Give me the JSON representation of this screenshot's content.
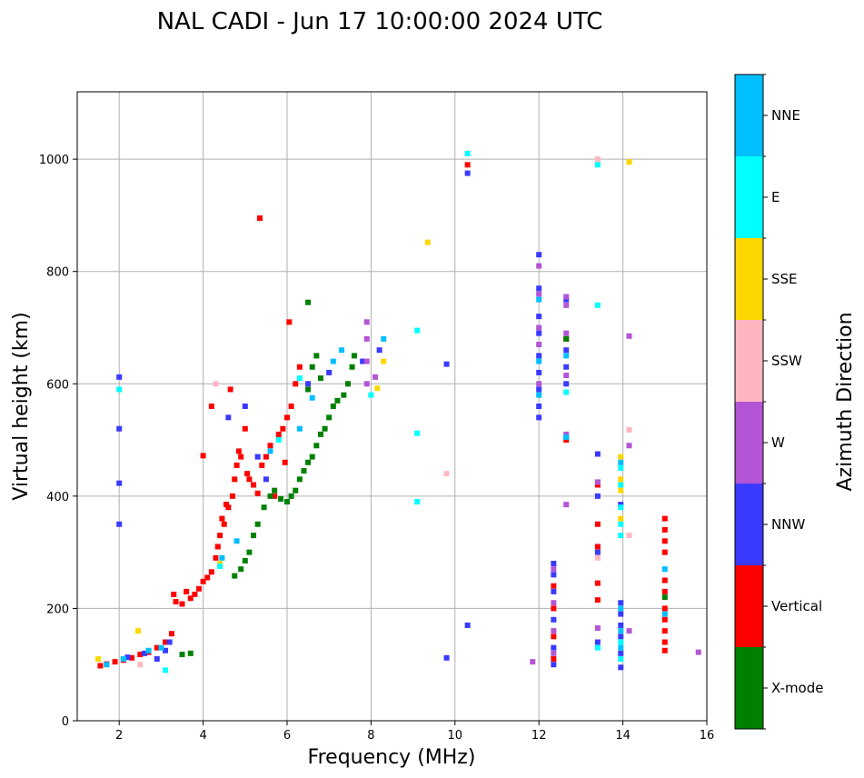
{
  "chart_data": {
    "type": "scatter",
    "title": "NAL CADI - Jun 17 10:00:00 2024 UTC",
    "xlabel": "Frequency (MHz)",
    "ylabel": "Virtual height (km)",
    "xlim": [
      1,
      16
    ],
    "ylim": [
      0,
      1120
    ],
    "xticks": [
      2,
      4,
      6,
      8,
      10,
      12,
      14,
      16
    ],
    "yticks": [
      0,
      200,
      400,
      600,
      800,
      1000
    ],
    "grid": true,
    "colorbar": {
      "label": "Azimuth Direction",
      "categories": [
        {
          "name": "X-mode",
          "color": "#008000"
        },
        {
          "name": "Vertical",
          "color": "#ff0000"
        },
        {
          "name": "NNW",
          "color": "#3a3aff"
        },
        {
          "name": "W",
          "color": "#b455d6"
        },
        {
          "name": "SSW",
          "color": "#ffb6c1"
        },
        {
          "name": "SSE",
          "color": "#ffd700"
        },
        {
          "name": "E",
          "color": "#00ffff"
        },
        {
          "name": "NNE",
          "color": "#00bfff"
        }
      ]
    },
    "series": [
      {
        "name": "Vertical",
        "points": [
          [
            1.55,
            98
          ],
          [
            1.7,
            101
          ],
          [
            1.9,
            105
          ],
          [
            2.1,
            108
          ],
          [
            2.3,
            112
          ],
          [
            2.5,
            118
          ],
          [
            2.7,
            122
          ],
          [
            2.9,
            130
          ],
          [
            3.1,
            140
          ],
          [
            3.25,
            155
          ],
          [
            3.3,
            225
          ],
          [
            3.35,
            212
          ],
          [
            3.5,
            208
          ],
          [
            3.6,
            230
          ],
          [
            3.7,
            218
          ],
          [
            3.8,
            225
          ],
          [
            3.9,
            235
          ],
          [
            4.0,
            248
          ],
          [
            4.1,
            255
          ],
          [
            4.2,
            265
          ],
          [
            4.3,
            290
          ],
          [
            4.35,
            310
          ],
          [
            4.4,
            330
          ],
          [
            4.45,
            360
          ],
          [
            4.5,
            350
          ],
          [
            4.55,
            385
          ],
          [
            4.6,
            380
          ],
          [
            4.7,
            400
          ],
          [
            4.75,
            430
          ],
          [
            4.8,
            455
          ],
          [
            4.85,
            480
          ],
          [
            4.9,
            470
          ],
          [
            5.0,
            520
          ],
          [
            5.05,
            440
          ],
          [
            5.1,
            430
          ],
          [
            5.2,
            420
          ],
          [
            5.3,
            405
          ],
          [
            5.4,
            455
          ],
          [
            5.5,
            470
          ],
          [
            5.6,
            490
          ],
          [
            5.7,
            400
          ],
          [
            5.8,
            510
          ],
          [
            5.9,
            520
          ],
          [
            5.95,
            460
          ],
          [
            6.0,
            540
          ],
          [
            6.1,
            560
          ],
          [
            6.2,
            600
          ],
          [
            6.3,
            630
          ],
          [
            4.0,
            472
          ],
          [
            5.35,
            895
          ],
          [
            10.3,
            990
          ],
          [
            13.4,
            420
          ],
          [
            13.4,
            350
          ],
          [
            13.4,
            310
          ],
          [
            13.4,
            245
          ],
          [
            13.4,
            215
          ],
          [
            15.0,
            360
          ],
          [
            15.0,
            340
          ],
          [
            15.0,
            320
          ],
          [
            15.0,
            300
          ],
          [
            15.0,
            250
          ],
          [
            15.0,
            230
          ],
          [
            15.0,
            200
          ],
          [
            15.0,
            180
          ],
          [
            15.0,
            160
          ],
          [
            15.0,
            140
          ],
          [
            15.0,
            125
          ],
          [
            12.35,
            240
          ],
          [
            12.35,
            200
          ],
          [
            12.35,
            150
          ],
          [
            12.35,
            110
          ],
          [
            12.65,
            680
          ],
          [
            12.65,
            500
          ],
          [
            4.65,
            590
          ],
          [
            4.2,
            560
          ],
          [
            6.05,
            710
          ]
        ]
      },
      {
        "name": "X-mode",
        "points": [
          [
            3.5,
            118
          ],
          [
            3.7,
            120
          ],
          [
            4.75,
            258
          ],
          [
            4.9,
            270
          ],
          [
            5.0,
            285
          ],
          [
            5.1,
            300
          ],
          [
            5.2,
            330
          ],
          [
            5.3,
            350
          ],
          [
            5.45,
            380
          ],
          [
            5.6,
            400
          ],
          [
            5.7,
            410
          ],
          [
            5.85,
            395
          ],
          [
            6.0,
            390
          ],
          [
            6.1,
            400
          ],
          [
            6.2,
            410
          ],
          [
            6.3,
            430
          ],
          [
            6.4,
            445
          ],
          [
            6.5,
            460
          ],
          [
            6.6,
            470
          ],
          [
            6.7,
            490
          ],
          [
            6.8,
            510
          ],
          [
            6.9,
            520
          ],
          [
            7.0,
            540
          ],
          [
            7.1,
            560
          ],
          [
            7.2,
            570
          ],
          [
            7.35,
            580
          ],
          [
            7.45,
            600
          ],
          [
            7.55,
            630
          ],
          [
            7.6,
            650
          ],
          [
            6.5,
            590
          ],
          [
            6.6,
            630
          ],
          [
            6.7,
            650
          ],
          [
            6.8,
            610
          ],
          [
            6.5,
            745
          ],
          [
            12.65,
            505
          ],
          [
            12.65,
            680
          ],
          [
            15.0,
            220
          ]
        ]
      },
      {
        "name": "NNW",
        "points": [
          [
            2.0,
            612
          ],
          [
            2.0,
            520
          ],
          [
            2.0,
            423
          ],
          [
            2.0,
            350
          ],
          [
            2.2,
            113
          ],
          [
            2.6,
            120
          ],
          [
            2.9,
            110
          ],
          [
            3.1,
            125
          ],
          [
            3.2,
            140
          ],
          [
            4.6,
            540
          ],
          [
            5.0,
            560
          ],
          [
            5.3,
            470
          ],
          [
            5.5,
            430
          ],
          [
            6.5,
            600
          ],
          [
            7.0,
            620
          ],
          [
            7.8,
            640
          ],
          [
            8.2,
            660
          ],
          [
            9.8,
            635
          ],
          [
            9.8,
            112
          ],
          [
            10.3,
            975
          ],
          [
            10.3,
            170
          ],
          [
            12.0,
            830
          ],
          [
            12.0,
            770
          ],
          [
            12.0,
            720
          ],
          [
            12.0,
            690
          ],
          [
            12.0,
            650
          ],
          [
            12.0,
            620
          ],
          [
            12.0,
            590
          ],
          [
            12.0,
            560
          ],
          [
            12.0,
            540
          ],
          [
            12.35,
            280
          ],
          [
            12.35,
            260
          ],
          [
            12.35,
            230
          ],
          [
            12.35,
            180
          ],
          [
            12.35,
            130
          ],
          [
            12.35,
            100
          ],
          [
            12.65,
            750
          ],
          [
            12.65,
            660
          ],
          [
            12.65,
            630
          ],
          [
            12.65,
            600
          ],
          [
            13.4,
            475
          ],
          [
            13.4,
            400
          ],
          [
            13.4,
            300
          ],
          [
            13.4,
            140
          ],
          [
            13.95,
            210
          ],
          [
            13.95,
            190
          ],
          [
            13.95,
            170
          ],
          [
            13.95,
            150
          ],
          [
            13.95,
            120
          ],
          [
            13.95,
            95
          ],
          [
            13.95,
            385
          ]
        ]
      },
      {
        "name": "W",
        "points": [
          [
            7.9,
            600
          ],
          [
            7.9,
            640
          ],
          [
            7.9,
            680
          ],
          [
            7.9,
            710
          ],
          [
            8.1,
            612
          ],
          [
            11.85,
            105
          ],
          [
            12.0,
            810
          ],
          [
            12.0,
            760
          ],
          [
            12.0,
            700
          ],
          [
            12.0,
            670
          ],
          [
            12.0,
            600
          ],
          [
            12.35,
            270
          ],
          [
            12.35,
            210
          ],
          [
            12.35,
            160
          ],
          [
            12.35,
            120
          ],
          [
            12.65,
            755
          ],
          [
            12.65,
            740
          ],
          [
            12.65,
            690
          ],
          [
            12.65,
            615
          ],
          [
            12.65,
            510
          ],
          [
            12.65,
            385
          ],
          [
            13.4,
            425
          ],
          [
            13.4,
            165
          ],
          [
            14.15,
            685
          ],
          [
            14.15,
            490
          ],
          [
            14.15,
            160
          ],
          [
            15.8,
            122
          ]
        ]
      },
      {
        "name": "SSW",
        "points": [
          [
            2.5,
            100
          ],
          [
            9.8,
            440
          ],
          [
            13.4,
            1000
          ],
          [
            14.15,
            518
          ],
          [
            14.15,
            330
          ],
          [
            13.4,
            290
          ],
          [
            4.3,
            600
          ]
        ]
      },
      {
        "name": "SSE",
        "points": [
          [
            2.45,
            160
          ],
          [
            1.5,
            110
          ],
          [
            4.4,
            280
          ],
          [
            8.15,
            592
          ],
          [
            8.3,
            640
          ],
          [
            9.35,
            852
          ],
          [
            13.95,
            470
          ],
          [
            13.95,
            430
          ],
          [
            13.95,
            410
          ],
          [
            13.95,
            360
          ],
          [
            14.15,
            995
          ]
        ]
      },
      {
        "name": "E",
        "points": [
          [
            2.0,
            590
          ],
          [
            3.1,
            90
          ],
          [
            4.4,
            275
          ],
          [
            5.8,
            500
          ],
          [
            6.3,
            610
          ],
          [
            8.0,
            580
          ],
          [
            9.1,
            695
          ],
          [
            9.1,
            512
          ],
          [
            9.1,
            390
          ],
          [
            10.3,
            1010
          ],
          [
            12.65,
            585
          ],
          [
            13.4,
            990
          ],
          [
            13.4,
            740
          ],
          [
            13.95,
            450
          ],
          [
            13.95,
            420
          ],
          [
            13.95,
            380
          ],
          [
            13.95,
            350
          ],
          [
            13.95,
            330
          ],
          [
            13.95,
            140
          ],
          [
            13.95,
            110
          ],
          [
            13.4,
            130
          ]
        ]
      },
      {
        "name": "NNE",
        "points": [
          [
            1.7,
            100
          ],
          [
            2.1,
            110
          ],
          [
            2.7,
            125
          ],
          [
            3.0,
            130
          ],
          [
            4.45,
            290
          ],
          [
            4.8,
            320
          ],
          [
            5.6,
            480
          ],
          [
            6.3,
            520
          ],
          [
            6.6,
            575
          ],
          [
            7.1,
            640
          ],
          [
            7.3,
            660
          ],
          [
            8.3,
            680
          ],
          [
            12.0,
            750
          ],
          [
            12.0,
            640
          ],
          [
            12.0,
            580
          ],
          [
            12.65,
            650
          ],
          [
            12.65,
            505
          ],
          [
            13.95,
            460
          ],
          [
            13.95,
            200
          ],
          [
            13.95,
            160
          ],
          [
            13.95,
            130
          ],
          [
            15.0,
            270
          ],
          [
            15.0,
            190
          ]
        ]
      }
    ]
  }
}
